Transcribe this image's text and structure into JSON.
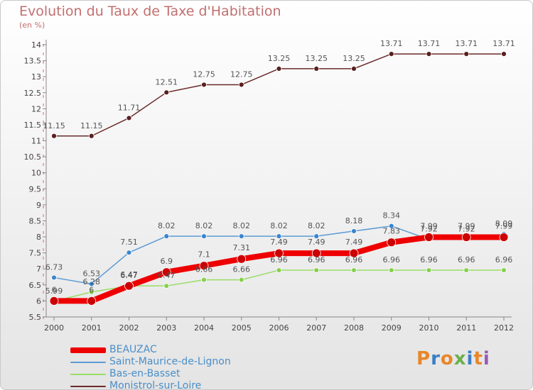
{
  "header": {
    "title": "Evolution du Taux de Taxe d'Habitation",
    "unit": "(en %)"
  },
  "logo": {
    "letters": [
      "P",
      "r",
      "o",
      "x",
      "i",
      "t",
      "i"
    ],
    "colors": [
      "#e8862a",
      "#3b7fc4",
      "#e8862a",
      "#6ab04c",
      "#3b7fc4",
      "#e8862a",
      "#9b59b6"
    ]
  },
  "chart_data": {
    "type": "line",
    "x": [
      "2000",
      "2001",
      "2002",
      "2003",
      "2004",
      "2005",
      "2006",
      "2007",
      "2008",
      "2009",
      "2010",
      "2011",
      "2012"
    ],
    "ylim": [
      5.5,
      14
    ],
    "yticks": [
      "5.5",
      "6",
      "6.5",
      "7",
      "7.5",
      "8",
      "8.5",
      "9",
      "9.5",
      "10",
      "10.5",
      "11",
      "11.5",
      "12",
      "12.5",
      "13",
      "13.5",
      "14"
    ],
    "grid": false,
    "legend_position": "bottom-left",
    "series": [
      {
        "name": "BEAUZAC",
        "color": "#ee0000",
        "values": [
          6,
          6,
          6.47,
          6.9,
          7.1,
          7.31,
          7.49,
          7.49,
          7.49,
          7.83,
          7.99,
          7.99,
          7.99
        ],
        "labels": [
          "6",
          "6",
          "6.47",
          "6.9",
          "7.1",
          "7.31",
          "7.49",
          "7.49",
          "7.49",
          "7.83",
          "7.99",
          "7.99",
          "7.99"
        ]
      },
      {
        "name": "Saint-Maurice-de-Lignon",
        "color": "#5b9bd5",
        "values": [
          6.73,
          6.53,
          7.51,
          8.02,
          8.02,
          8.02,
          8.02,
          8.02,
          8.18,
          8.34,
          7.92,
          7.92,
          8.09
        ],
        "labels": [
          "6.73",
          "6.53",
          "7.51",
          "8.02",
          "8.02",
          "8.02",
          "8.02",
          "8.02",
          "8.18",
          "8.34",
          "7.92",
          "7.92",
          "8.09"
        ]
      },
      {
        "name": "Bas-en-Basset",
        "color": "#99dd66",
        "values": [
          5.99,
          6.28,
          6.47,
          6.47,
          6.66,
          6.66,
          6.96,
          6.96,
          6.96,
          6.96,
          6.96,
          6.96,
          6.96
        ],
        "labels": [
          "5.99",
          "6.28",
          "6.47",
          "6.47",
          "6.66",
          "6.66",
          "6.96",
          "6.96",
          "6.96",
          "6.96",
          "6.96",
          "6.96",
          "6.96"
        ]
      },
      {
        "name": "Monistrol-sur-Loire",
        "color": "#6b2a2a",
        "values": [
          11.15,
          11.15,
          11.71,
          12.51,
          12.75,
          12.75,
          13.25,
          13.25,
          13.25,
          13.71,
          13.71,
          13.71,
          13.71
        ],
        "labels": [
          "11.15",
          "11.15",
          "11.71",
          "12.51",
          "12.75",
          "12.75",
          "13.25",
          "13.25",
          "13.25",
          "13.71",
          "13.71",
          "13.71",
          "13.71"
        ]
      }
    ]
  }
}
